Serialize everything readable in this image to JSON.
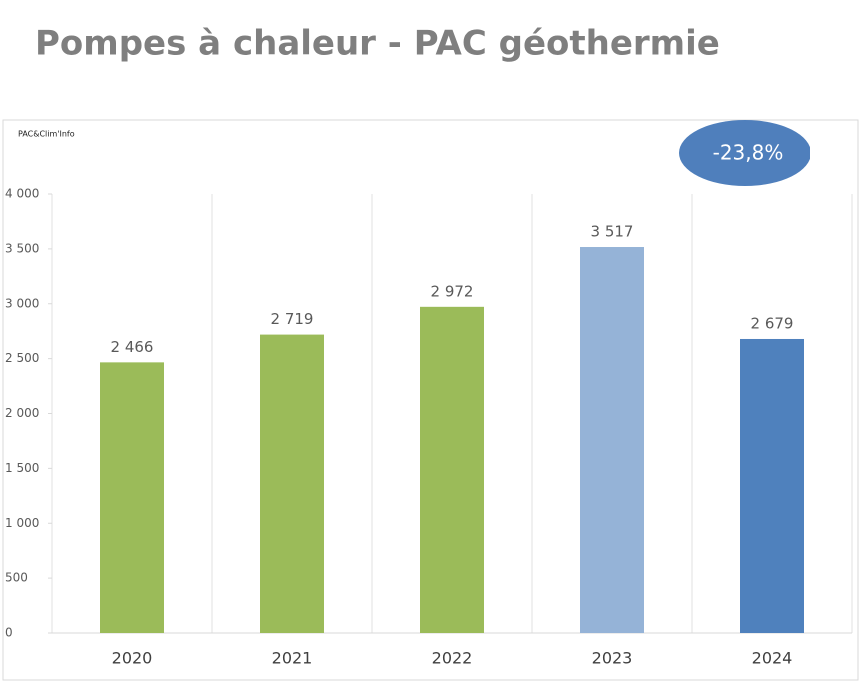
{
  "chart_data": {
    "type": "bar",
    "title": "Pompes à chaleur - PAC géothermie",
    "source": "PAC&Clim'Info",
    "annotation": "-23,8%",
    "annotation_color": "#4f7fbc",
    "categories": [
      "2020",
      "2021",
      "2022",
      "2023",
      "2024"
    ],
    "values": [
      2466,
      2719,
      2972,
      3517,
      2679
    ],
    "value_labels": [
      "2 466",
      "2 719",
      "2 972",
      "3 517",
      "2 679"
    ],
    "colors": [
      "#9bbb59",
      "#9bbb59",
      "#9bbb59",
      "#95b3d7",
      "#4f81bd"
    ],
    "ylim": [
      0,
      4000
    ],
    "yticks": [
      0,
      500,
      {
        "value": 1000,
        "label": "1 000"
      },
      {
        "value": 1500,
        "label": "1 500"
      },
      {
        "value": 2000,
        "label": "2 000"
      },
      {
        "value": 2500,
        "label": "2 500"
      },
      {
        "value": 3000,
        "label": "3 000"
      },
      {
        "value": 3500,
        "label": "3 500"
      },
      {
        "value": 4000,
        "label": "4 000"
      }
    ],
    "grid": true
  }
}
